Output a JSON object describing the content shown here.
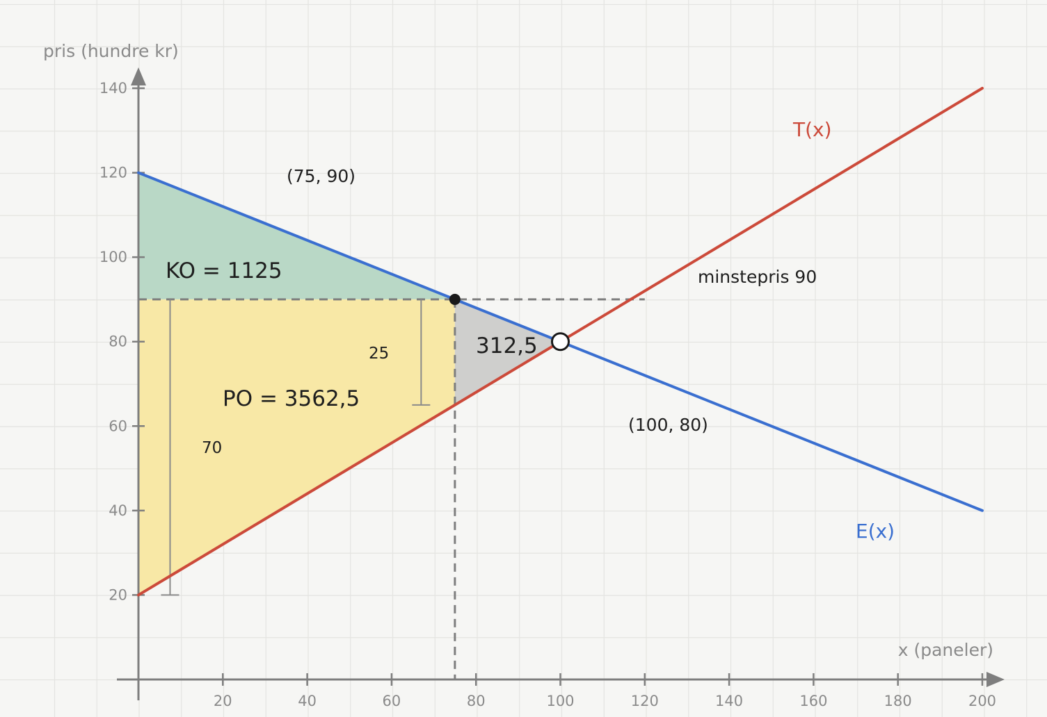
{
  "chart_data": {
    "type": "line",
    "xlabel": "x (paneler)",
    "ylabel": "pris (hundre kr)",
    "xlim": [
      0,
      200
    ],
    "ylim": [
      0,
      140
    ],
    "x_ticks": [
      "20",
      "40",
      "60",
      "80",
      "100",
      "120",
      "140",
      "160",
      "180",
      "200"
    ],
    "y_ticks": [
      "20",
      "40",
      "60",
      "80",
      "100",
      "120",
      "140"
    ],
    "grid": true,
    "series": [
      {
        "name": "E(x)",
        "color": "#3a6fd0",
        "x": [
          0,
          200
        ],
        "y": [
          120,
          40
        ]
      },
      {
        "name": "T(x)",
        "color": "#cc4a3a",
        "x": [
          0,
          200
        ],
        "y": [
          20,
          140
        ]
      }
    ],
    "areas": [
      {
        "label": "KO = 1125",
        "color": "#b9d8c6",
        "x": [
          0,
          0,
          75
        ],
        "y": [
          90,
          120,
          90
        ]
      },
      {
        "label": "PO = 3562,5",
        "color": "#f8e8a6",
        "x": [
          0,
          0,
          75,
          75
        ],
        "y": [
          20,
          90,
          90,
          65
        ]
      },
      {
        "label": "312,5",
        "color": "#cfcfcd",
        "x": [
          75,
          75,
          100
        ],
        "y": [
          90,
          65,
          80
        ]
      }
    ],
    "points": [
      {
        "label": "(75, 90)",
        "x": 75,
        "y": 90,
        "style": "filled"
      },
      {
        "label": "(100, 80)",
        "x": 100,
        "y": 80,
        "style": "open"
      }
    ],
    "annotations": {
      "minimum_price": "minstepris 90",
      "minimum_price_value": 90,
      "bracket_70": "70",
      "bracket_25": "25"
    }
  }
}
